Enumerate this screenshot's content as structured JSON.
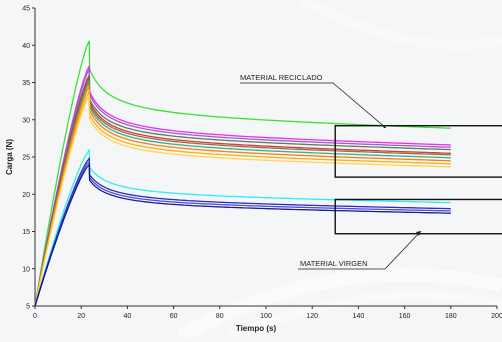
{
  "chart_data": {
    "type": "line",
    "title": "",
    "xlabel": "Tiempo (s)",
    "ylabel": "Carga (N)",
    "xlim": [
      0,
      200
    ],
    "ylim": [
      5,
      45
    ],
    "xticks": [
      0,
      20,
      40,
      60,
      80,
      100,
      120,
      140,
      160,
      180,
      200
    ],
    "yticks": [
      5,
      10,
      15,
      20,
      25,
      30,
      35,
      40,
      45
    ],
    "grid": false,
    "annotations": [
      {
        "label": "MATERIAL RECICLADO",
        "target_box": {
          "x": [
            133,
            180
          ],
          "y": [
            22.3,
            29.2
          ]
        }
      },
      {
        "label": "MATERIAL VIRGEN",
        "target_box": {
          "x": [
            133,
            180
          ],
          "y": [
            14.7,
            19.3
          ]
        }
      }
    ],
    "series": [
      {
        "group": "reciclado",
        "color": "#33dd33",
        "peak_x": 23.5,
        "peak": 40.6,
        "end": 28.4
      },
      {
        "group": "reciclado",
        "color": "#ee22ee",
        "peak_x": 23.5,
        "peak": 37.2,
        "end": 26.2
      },
      {
        "group": "reciclado",
        "color": "#9955cc",
        "peak_x": 23.5,
        "peak": 36.8,
        "end": 25.9
      },
      {
        "group": "reciclado",
        "color": "#557755",
        "peak_x": 23.5,
        "peak": 36.0,
        "end": 25.6
      },
      {
        "group": "reciclado",
        "color": "#cc3333",
        "peak_x": 23.5,
        "peak": 35.7,
        "end": 25.1
      },
      {
        "group": "reciclado",
        "color": "#996633",
        "peak_x": 23.5,
        "peak": 35.3,
        "end": 24.9
      },
      {
        "group": "reciclado",
        "color": "#33aa88",
        "peak_x": 23.5,
        "peak": 35.0,
        "end": 24.5
      },
      {
        "group": "reciclado",
        "color": "#ff7700",
        "peak_x": 23.5,
        "peak": 34.5,
        "end": 24.1
      },
      {
        "group": "reciclado",
        "color": "#ffaa00",
        "peak_x": 23.5,
        "peak": 33.8,
        "end": 23.7
      },
      {
        "group": "reciclado",
        "color": "#ffd24a",
        "peak_x": 23.5,
        "peak": 33.2,
        "end": 23.3
      },
      {
        "group": "virgen",
        "color": "#22eeee",
        "peak_x": 23.5,
        "peak": 25.9,
        "end": 18.6
      },
      {
        "group": "virgen",
        "color": "#2222bb",
        "peak_x": 23.5,
        "peak": 24.8,
        "end": 17.8
      },
      {
        "group": "virgen",
        "color": "#4444dd",
        "peak_x": 23.5,
        "peak": 24.4,
        "end": 17.5
      },
      {
        "group": "virgen",
        "color": "#111188",
        "peak_x": 23.5,
        "peak": 24.0,
        "end": 17.2
      }
    ],
    "start_value": 5,
    "end_x": 180
  }
}
